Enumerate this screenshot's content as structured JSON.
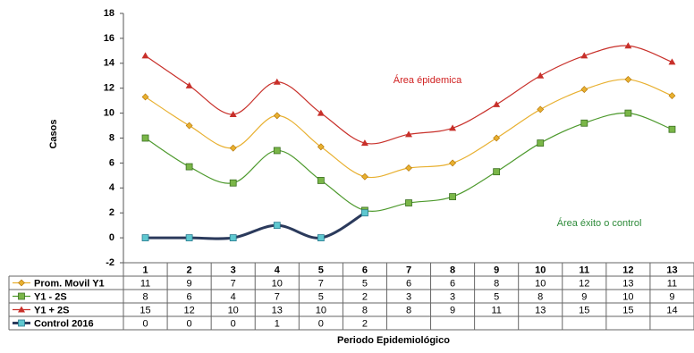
{
  "chart_data": {
    "type": "line",
    "y_label": "Casos",
    "x_label": "Periodo  Epidemiológico",
    "annotations": [
      "Área épidemica",
      "Área éxito o control"
    ],
    "categories": [
      "1",
      "2",
      "3",
      "4",
      "5",
      "6",
      "7",
      "8",
      "9",
      "10",
      "11",
      "12",
      "13"
    ],
    "ylim": [
      -2,
      18
    ],
    "yticks": [
      -2,
      0,
      2,
      4,
      6,
      8,
      10,
      12,
      14,
      16,
      18
    ],
    "grid": false,
    "series": [
      {
        "name": "Prom.  Movil Y1",
        "color": "#e8b030",
        "marker": "diamond",
        "values": [
          11.3,
          9.0,
          7.2,
          9.8,
          7.3,
          4.9,
          5.6,
          6.0,
          8.0,
          10.3,
          11.9,
          12.7,
          11.4
        ],
        "value_labels": [
          "11",
          "9",
          "7",
          "10",
          "7",
          "5",
          "6",
          "6",
          "8",
          "10",
          "12",
          "13",
          "11"
        ]
      },
      {
        "name": "Y1 - 2S",
        "color": "#4e9a2e",
        "marker": "square",
        "values": [
          8.0,
          5.7,
          4.4,
          7.0,
          4.6,
          2.2,
          2.8,
          3.3,
          5.3,
          7.6,
          9.2,
          10.0,
          8.7
        ],
        "value_labels": [
          "8",
          "6",
          "4",
          "7",
          "5",
          "2",
          "3",
          "3",
          "5",
          "8",
          "9",
          "10",
          "9"
        ]
      },
      {
        "name": "Y1 + 2S",
        "color": "#c8302a",
        "marker": "triangle",
        "values": [
          14.6,
          12.2,
          9.9,
          12.5,
          10.0,
          7.6,
          8.3,
          8.8,
          10.7,
          13.0,
          14.6,
          15.4,
          14.1
        ],
        "value_labels": [
          "15",
          "12",
          "10",
          "13",
          "10",
          "8",
          "8",
          "9",
          "11",
          "13",
          "15",
          "15",
          "14"
        ]
      },
      {
        "name": "Control 2016",
        "color": "#2b3a5c",
        "marker": "square-teal",
        "values": [
          0,
          0,
          0,
          1,
          0,
          2,
          null,
          null,
          null,
          null,
          null,
          null,
          null
        ]
      }
    ]
  }
}
